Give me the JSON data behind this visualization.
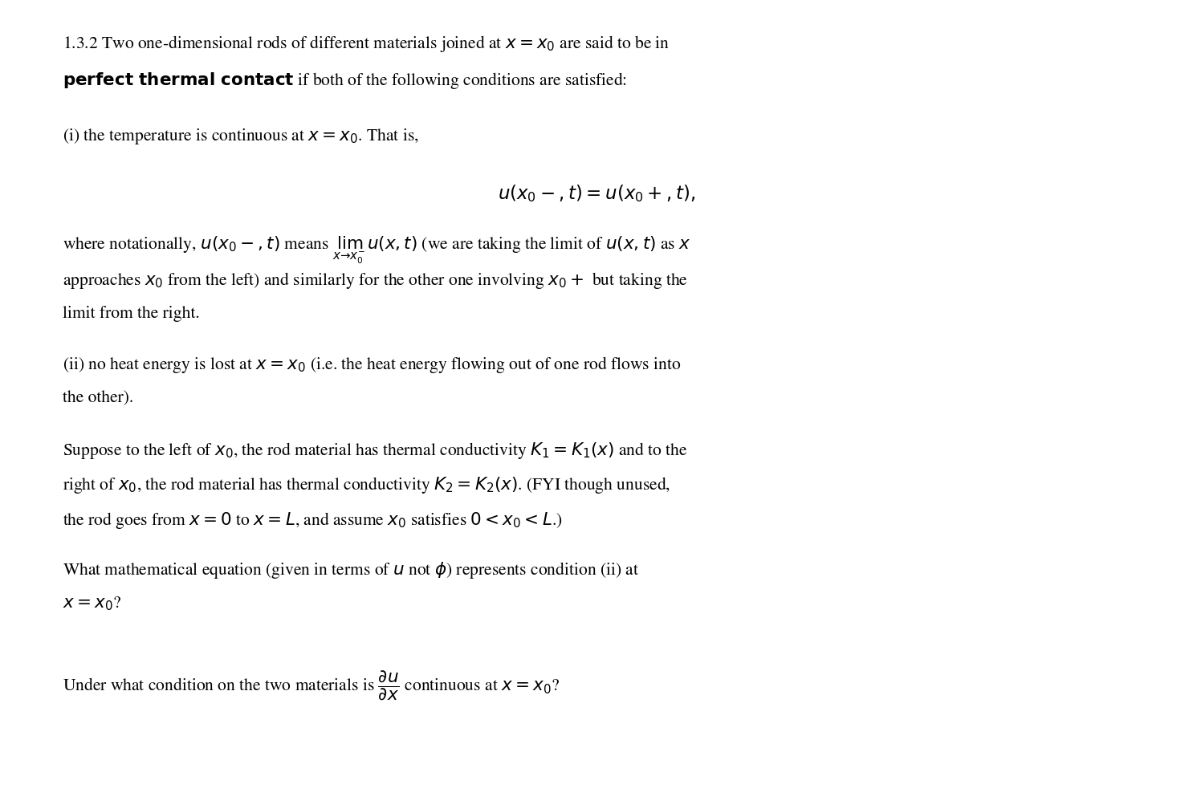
{
  "background_color": "#ffffff",
  "figsize": [
    14.86,
    10.08
  ],
  "dpi": 100,
  "text_color": "#000000"
}
